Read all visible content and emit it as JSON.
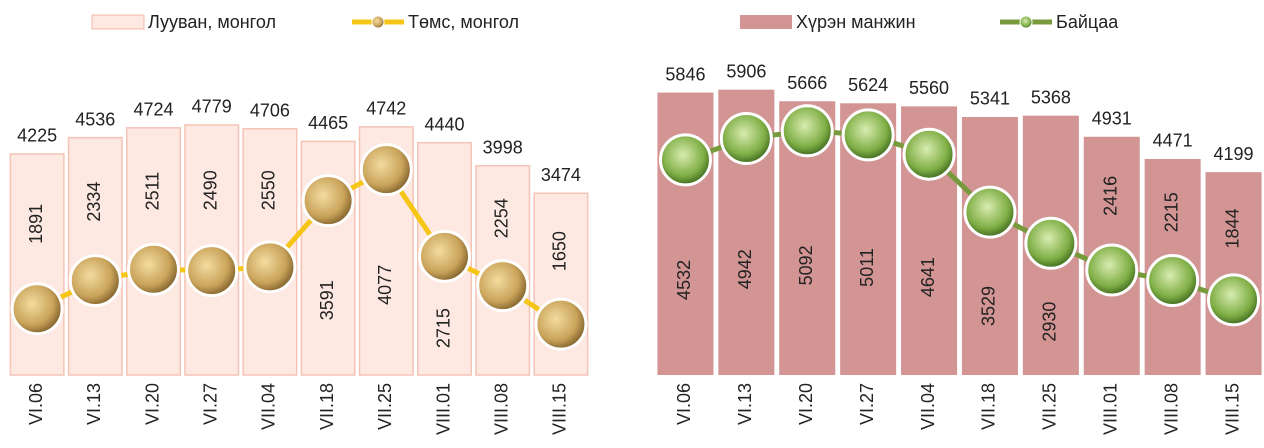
{
  "chart_data": [
    {
      "type": "bar",
      "categories": [
        "VI.06",
        "VI.13",
        "VI.20",
        "VI.27",
        "VII.04",
        "VII.18",
        "VII.25",
        "VIII.01",
        "VIII.08",
        "VIII.15"
      ],
      "series": [
        {
          "name": "Лууван, монгол",
          "type": "bar",
          "color": "#fde9e1",
          "values": [
            4225,
            4536,
            4724,
            4779,
            4706,
            4465,
            4742,
            4440,
            3998,
            3474
          ]
        },
        {
          "name": "Төмс, монгол",
          "type": "line",
          "axis": "y2",
          "color": "#f5c518",
          "values": [
            1891,
            2334,
            2511,
            2490,
            2550,
            3591,
            4077,
            2715,
            2254,
            1650
          ]
        }
      ],
      "ylim": [
        0,
        6020
      ],
      "y2lim": [
        850,
        5800
      ]
    },
    {
      "type": "bar",
      "categories": [
        "VI.06",
        "VI.13",
        "VI.20",
        "VI.27",
        "VII.04",
        "VII.18",
        "VII.25",
        "VIII.01",
        "VIII.08",
        "VIII.15"
      ],
      "series": [
        {
          "name": "Хүрэн манжин",
          "type": "bar",
          "color": "#d29594",
          "values": [
            5846,
            5906,
            5666,
            5624,
            5560,
            5341,
            5368,
            4931,
            4471,
            4199
          ]
        },
        {
          "name": "Байцаа",
          "type": "line",
          "axis": "y2",
          "color": "#779a3c",
          "values": [
            4532,
            4942,
            5092,
            5011,
            4641,
            3529,
            2930,
            2416,
            2215,
            1844
          ]
        }
      ],
      "ylim": [
        0,
        6520
      ],
      "y2lim": [
        400,
        6450
      ]
    }
  ]
}
